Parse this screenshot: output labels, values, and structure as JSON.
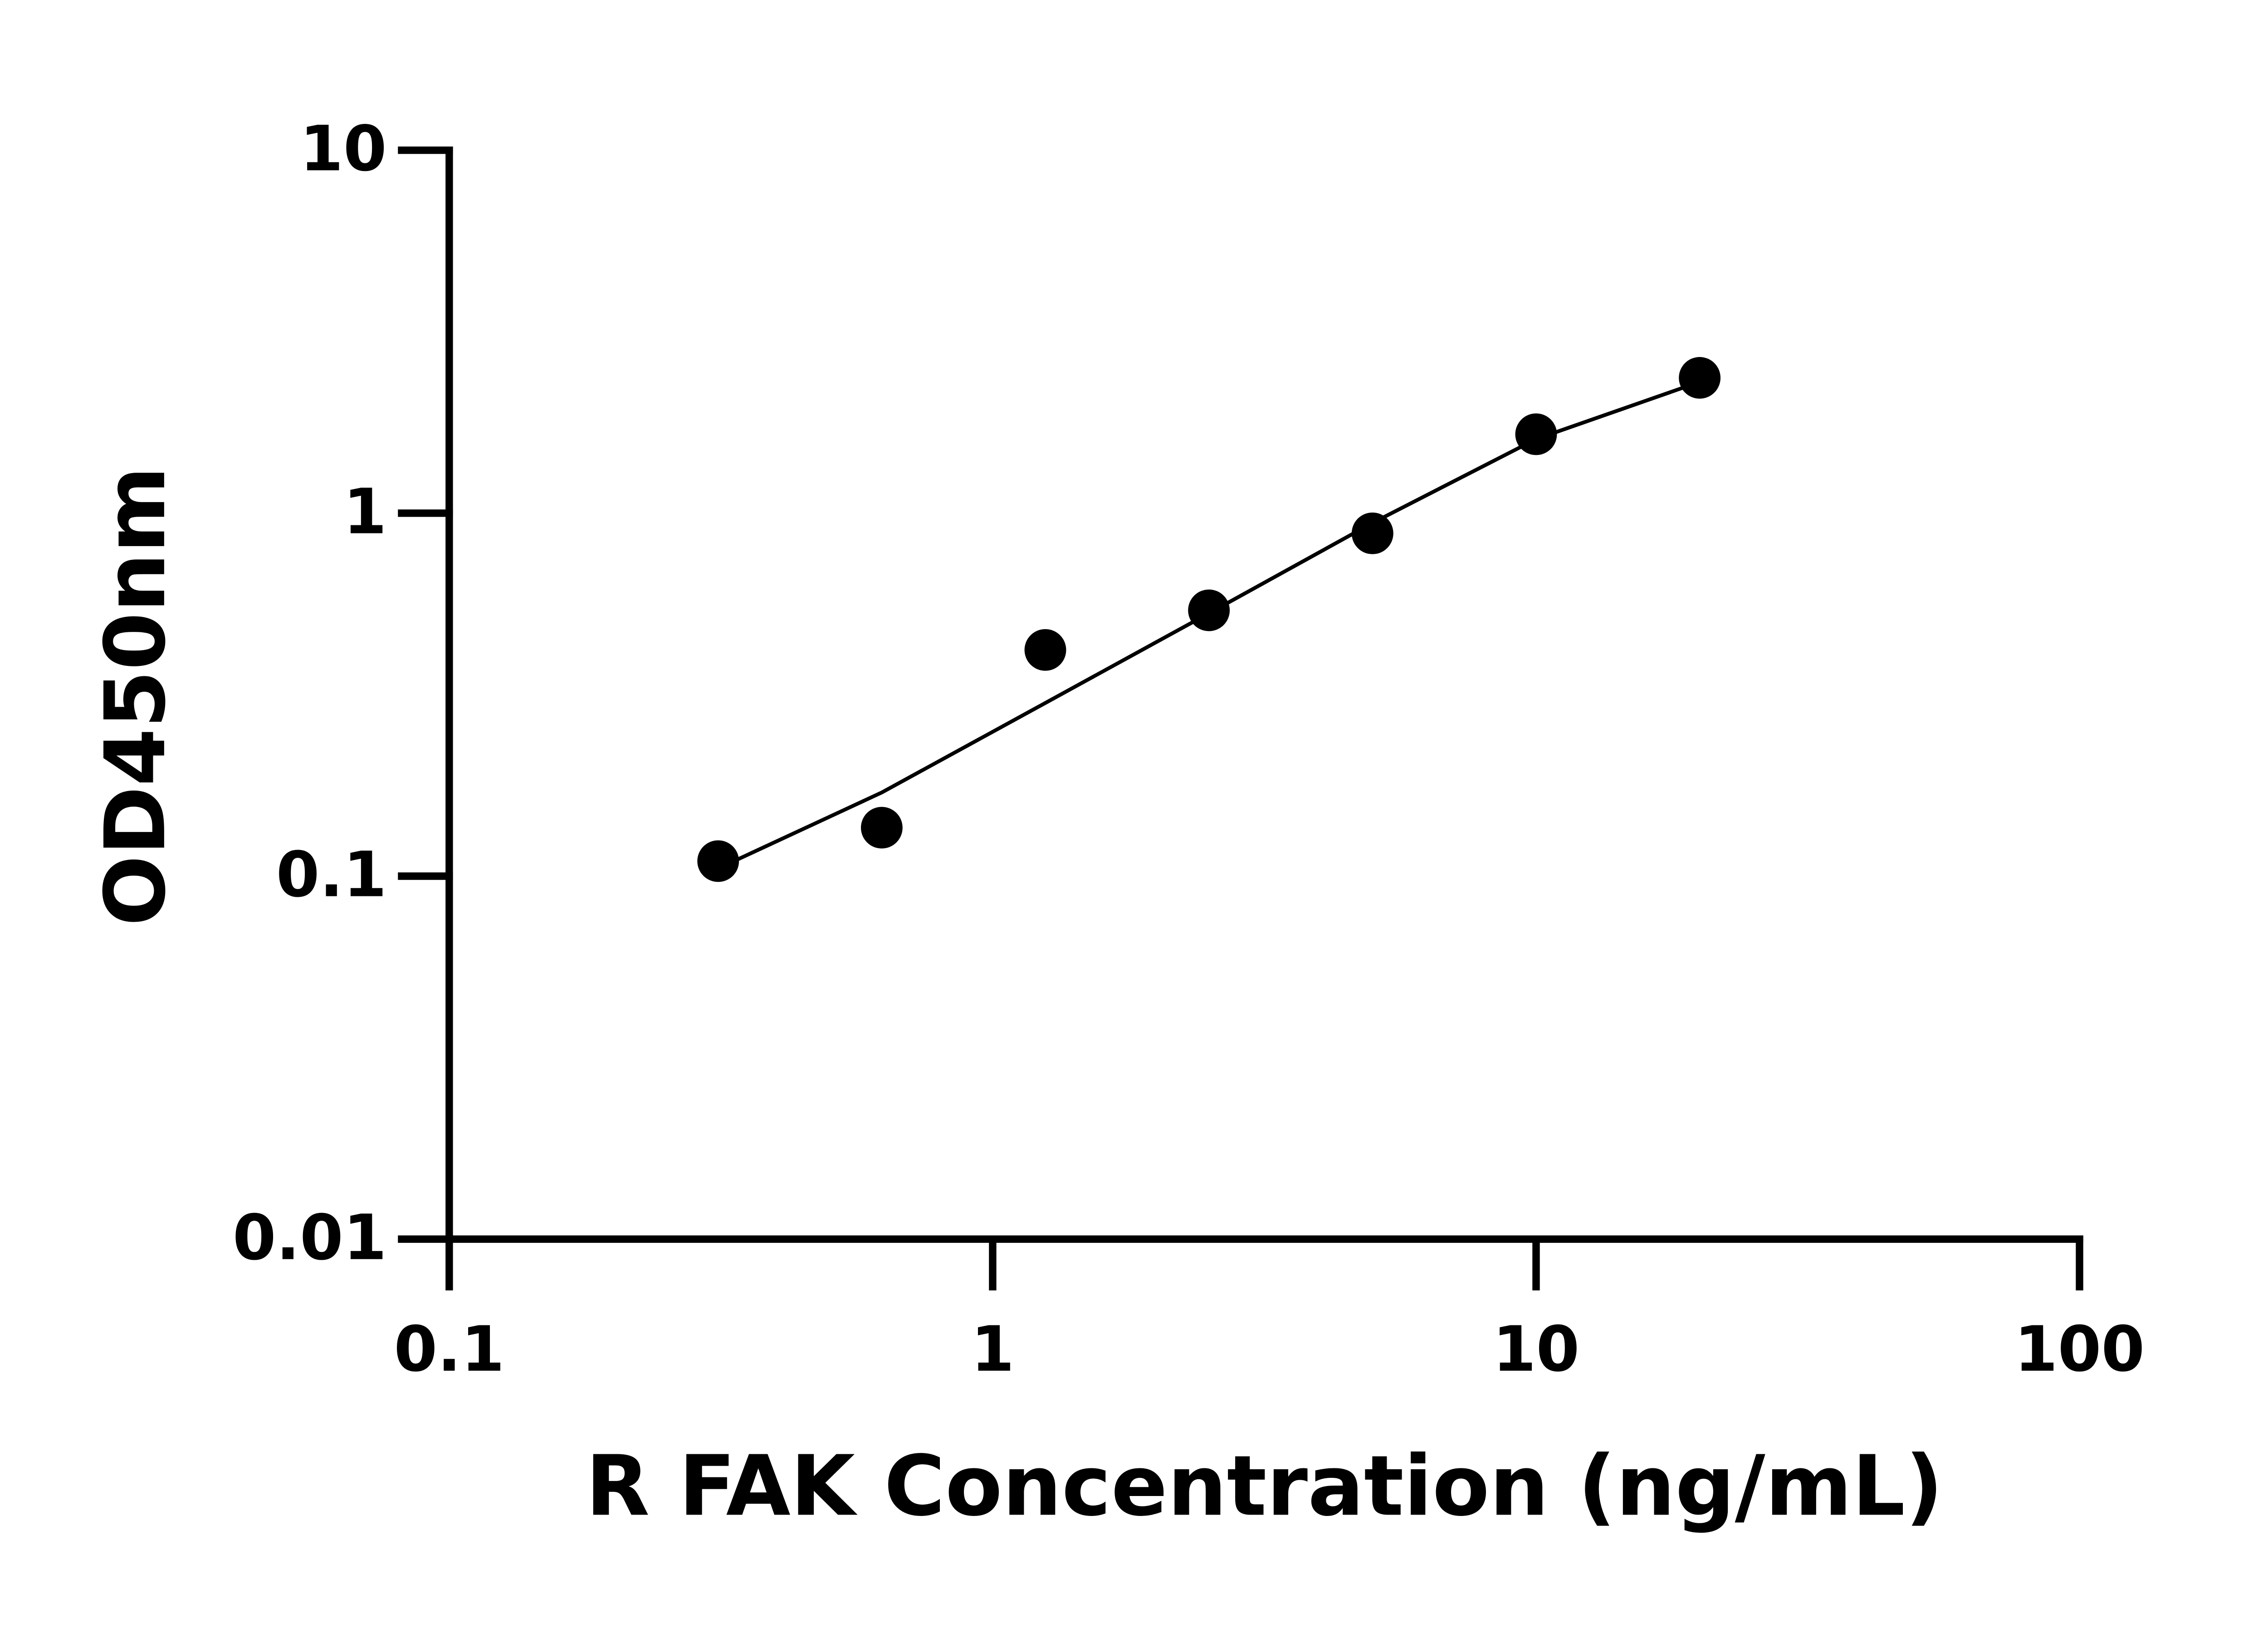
{
  "chart_data": {
    "type": "scatter",
    "x_label": "R FAK Concentration (ng/mL)",
    "y_label": "OD450nm",
    "x": [
      0.3125,
      0.625,
      1.25,
      2.5,
      5,
      10,
      20
    ],
    "values": [
      0.11,
      0.136,
      0.42,
      0.54,
      0.88,
      1.65,
      2.36
    ],
    "color": "#000000",
    "fit": {
      "x": [
        0.3125,
        0.625,
        1.25,
        2.5,
        5,
        10,
        20
      ],
      "values": [
        0.105,
        0.17,
        0.3,
        0.53,
        0.94,
        1.6,
        2.3
      ]
    },
    "xscale": "log",
    "yscale": "log",
    "xlim": [
      0.1,
      100
    ],
    "ylim": [
      0.01,
      10
    ],
    "xticks": [
      0.1,
      1,
      10,
      100
    ],
    "yticks": [
      0.01,
      0.1,
      1,
      10
    ]
  }
}
